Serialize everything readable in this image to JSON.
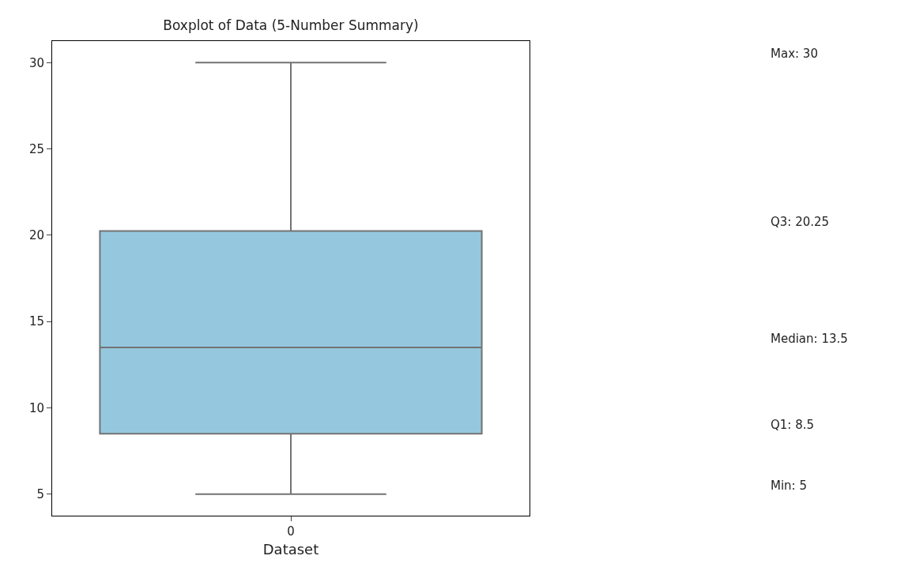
{
  "chart_data": {
    "type": "box",
    "title": "Boxplot of Data (5-Number Summary)",
    "xlabel": "Dataset",
    "categories": [
      "0"
    ],
    "boxes": [
      {
        "low": 5,
        "q1": 8.5,
        "median": 13.5,
        "q3": 20.25,
        "high": 30
      }
    ],
    "color": "#95c8de",
    "ylim": [
      3.75,
      31.25
    ],
    "yticks": [
      5,
      10,
      15,
      20,
      25,
      30
    ],
    "annotations": [
      "Max: 30",
      "Q3: 20.25",
      "Median: 13.5",
      "Q1: 8.5",
      "Min: 5"
    ]
  }
}
